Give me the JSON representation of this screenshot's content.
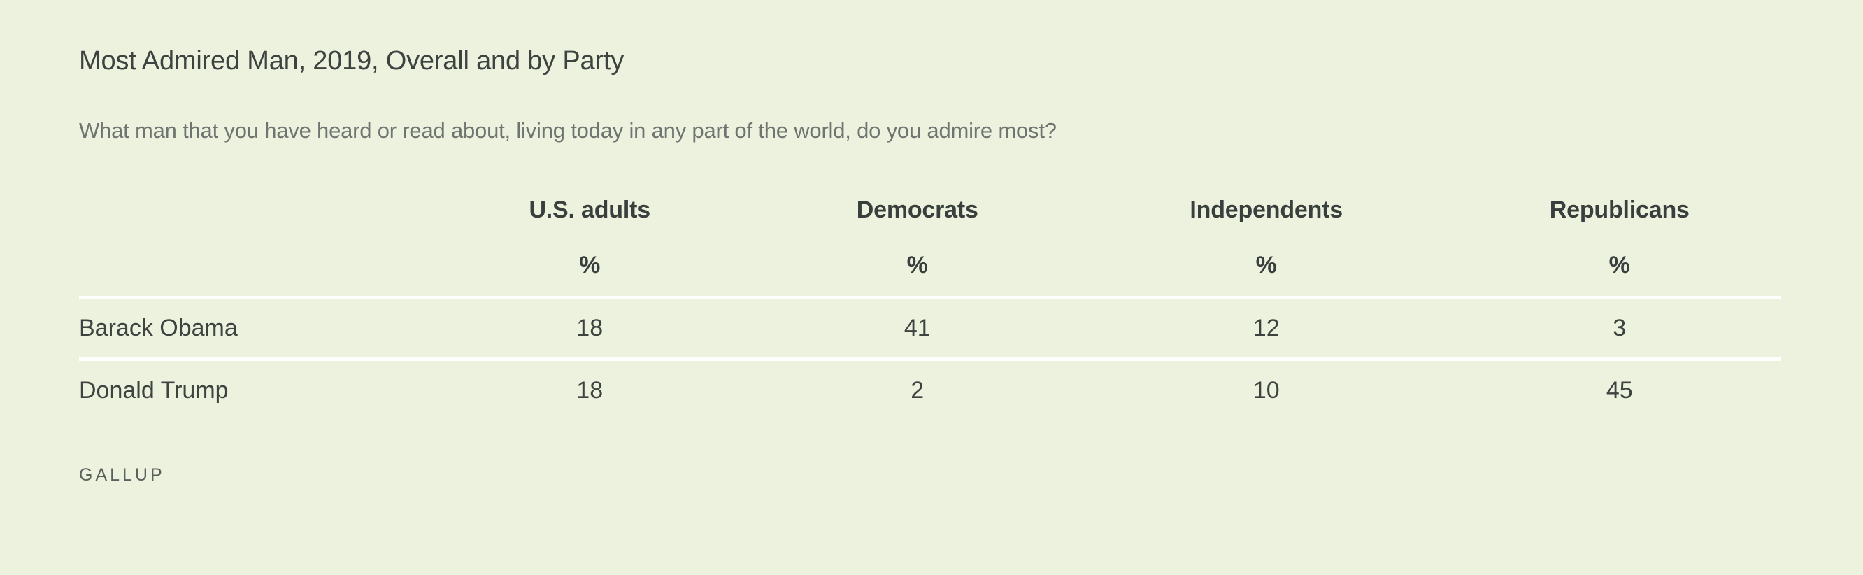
{
  "page": {
    "title": "Most Admired Man, 2019, Overall and by Party",
    "question": "What man that you have heard or read about, living today in any part of the world, do you admire most?",
    "source": "GALLUP",
    "colors": {
      "background": "#edf2df",
      "text_dark": "#3d4440",
      "text_muted": "#6e746f",
      "divider": "#ffffff"
    }
  },
  "table": {
    "columns": [
      "U.S. adults",
      "Democrats",
      "Independents",
      "Republicans"
    ],
    "unit_symbol": "%",
    "rows": [
      {
        "label": "Barack Obama",
        "values": [
          "18",
          "41",
          "12",
          "3"
        ]
      },
      {
        "label": "Donald Trump",
        "values": [
          "18",
          "2",
          "10",
          "45"
        ]
      }
    ]
  },
  "chart_data": {
    "type": "table",
    "title": "Most Admired Man, 2019, Overall and by Party",
    "subtitle": "What man that you have heard or read about, living today in any part of the world, do you admire most?",
    "categories": [
      "U.S. adults",
      "Democrats",
      "Independents",
      "Republicans"
    ],
    "unit": "%",
    "series": [
      {
        "name": "Barack Obama",
        "values": [
          18,
          41,
          12,
          3
        ]
      },
      {
        "name": "Donald Trump",
        "values": [
          18,
          2,
          10,
          45
        ]
      }
    ],
    "source": "GALLUP",
    "layout": {
      "row_dividers": "white horizontal rules above each data row",
      "first_column_align": "left",
      "value_columns_align": "center",
      "background": "#edf2df"
    }
  }
}
